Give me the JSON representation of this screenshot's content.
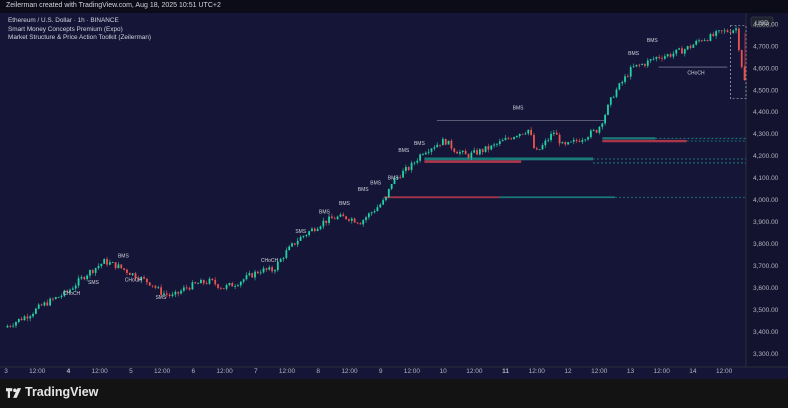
{
  "header": {
    "credit": "Zeilerman created with TradingView.com, Aug 18, 2025 10:51 UTC+2"
  },
  "legend": {
    "symbol": "Ethereum / U.S. Dollar · 1h · BINANCE",
    "indicator_1": "Smart Money Concepts Premium (Expo)",
    "indicator_2": "Market Structure & Price Action Toolkit (Zeilerman)"
  },
  "currency_badge": "USD",
  "footer": {
    "brand": "TradingView"
  },
  "colors": {
    "background": "#151538",
    "up": "#22d3a4",
    "down": "#ef5350",
    "demand_zone": "#1a8d84",
    "supply_zone": "#c23b4e",
    "text": "#d1d4dc"
  },
  "chart_data": {
    "type": "candlestick",
    "title": "Ethereum / U.S. Dollar · 1h · BINANCE",
    "x_tick_labels": [
      "3",
      "12:00",
      "4",
      "12:00",
      "5",
      "12:00",
      "6",
      "12:00",
      "7",
      "12:00",
      "8",
      "12:00",
      "9",
      "12:00",
      "10",
      "12:00",
      "11",
      "12:00",
      "12",
      "12:00",
      "13",
      "12:00",
      "14",
      "12:00"
    ],
    "x_tick_days": [
      3,
      3.5,
      4,
      4.5,
      5,
      5.5,
      6,
      6.5,
      7,
      7.5,
      8,
      8.5,
      9,
      9.5,
      10,
      10.5,
      11,
      11.5,
      12,
      12.5,
      13,
      13.5,
      14,
      14.5
    ],
    "x_range_days": [
      3,
      14.85
    ],
    "y_tick_values": [
      3300,
      3400,
      3500,
      3600,
      3700,
      3800,
      3900,
      4000,
      4100,
      4200,
      4300,
      4400,
      4500,
      4600,
      4700,
      4800
    ],
    "y_tick_labels": [
      "3,300.00",
      "3,400.00",
      "3,500.00",
      "3,600.00",
      "3,700.00",
      "3,800.00",
      "3,900.00",
      "4,000.00",
      "4,100.00",
      "4,200.00",
      "4,300.00",
      "4,400.00",
      "4,500.00",
      "4,600.00",
      "4,700.00",
      "4,800.00"
    ],
    "ylim": [
      3240,
      4850
    ],
    "price_path": [
      [
        3.0,
        3420
      ],
      [
        3.2,
        3450
      ],
      [
        3.4,
        3480
      ],
      [
        3.6,
        3520
      ],
      [
        3.8,
        3550
      ],
      [
        4.0,
        3580
      ],
      [
        4.15,
        3620
      ],
      [
        4.3,
        3660
      ],
      [
        4.5,
        3700
      ],
      [
        4.6,
        3720
      ],
      [
        4.8,
        3700
      ],
      [
        5.0,
        3670
      ],
      [
        5.2,
        3640
      ],
      [
        5.35,
        3620
      ],
      [
        5.5,
        3580
      ],
      [
        5.7,
        3560
      ],
      [
        5.9,
        3600
      ],
      [
        6.1,
        3620
      ],
      [
        6.3,
        3630
      ],
      [
        6.5,
        3600
      ],
      [
        6.7,
        3620
      ],
      [
        6.9,
        3650
      ],
      [
        7.1,
        3680
      ],
      [
        7.3,
        3680
      ],
      [
        7.5,
        3760
      ],
      [
        7.7,
        3820
      ],
      [
        7.9,
        3860
      ],
      [
        8.1,
        3900
      ],
      [
        8.3,
        3920
      ],
      [
        8.5,
        3920
      ],
      [
        8.7,
        3900
      ],
      [
        8.9,
        3950
      ],
      [
        9.1,
        4000
      ],
      [
        9.2,
        4080
      ],
      [
        9.35,
        4120
      ],
      [
        9.5,
        4150
      ],
      [
        9.7,
        4220
      ],
      [
        9.9,
        4250
      ],
      [
        10.05,
        4270
      ],
      [
        10.2,
        4230
      ],
      [
        10.4,
        4200
      ],
      [
        10.6,
        4220
      ],
      [
        10.8,
        4240
      ],
      [
        11.0,
        4270
      ],
      [
        11.2,
        4300
      ],
      [
        11.4,
        4320
      ],
      [
        11.5,
        4210
      ],
      [
        11.6,
        4240
      ],
      [
        11.8,
        4310
      ],
      [
        11.95,
        4240
      ],
      [
        12.1,
        4260
      ],
      [
        12.3,
        4290
      ],
      [
        12.5,
        4320
      ],
      [
        12.6,
        4380
      ],
      [
        12.75,
        4480
      ],
      [
        12.9,
        4540
      ],
      [
        13.05,
        4600
      ],
      [
        13.25,
        4620
      ],
      [
        13.45,
        4650
      ],
      [
        13.65,
        4660
      ],
      [
        13.85,
        4680
      ],
      [
        14.0,
        4700
      ],
      [
        14.15,
        4730
      ],
      [
        14.3,
        4740
      ],
      [
        14.45,
        4760
      ],
      [
        14.6,
        4770
      ],
      [
        14.72,
        4780
      ],
      [
        14.78,
        4650
      ],
      [
        14.85,
        4540
      ]
    ],
    "structure_labels": [
      {
        "text": "CHoCH",
        "day": 4.05,
        "price": 3568
      },
      {
        "text": "SMS",
        "day": 4.4,
        "price": 3618
      },
      {
        "text": "BMS",
        "day": 4.88,
        "price": 3738
      },
      {
        "text": "CHoCH",
        "day": 5.04,
        "price": 3628
      },
      {
        "text": "SMS",
        "day": 5.48,
        "price": 3550
      },
      {
        "text": "CHoCH",
        "day": 7.22,
        "price": 3718
      },
      {
        "text": "SMS",
        "day": 7.72,
        "price": 3850
      },
      {
        "text": "BMS",
        "day": 8.1,
        "price": 3938
      },
      {
        "text": "BMS",
        "day": 8.42,
        "price": 3976
      },
      {
        "text": "BMS",
        "day": 8.72,
        "price": 4040
      },
      {
        "text": "BMS",
        "day": 8.92,
        "price": 4070
      },
      {
        "text": "BMS",
        "day": 9.2,
        "price": 4092
      },
      {
        "text": "BMS",
        "day": 9.37,
        "price": 4218
      },
      {
        "text": "BMS",
        "day": 9.62,
        "price": 4250
      },
      {
        "text": "BMS",
        "day": 11.2,
        "price": 4410
      },
      {
        "text": "BMS",
        "day": 13.05,
        "price": 4660
      },
      {
        "text": "BMS",
        "day": 13.35,
        "price": 4718
      },
      {
        "text": "CHoCH",
        "day": 14.05,
        "price": 4570
      }
    ]
  }
}
